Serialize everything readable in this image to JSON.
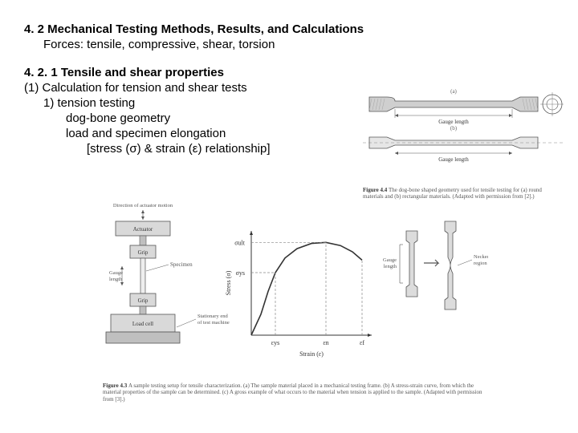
{
  "heading1": "4. 2  Mechanical Testing Methods, Results, and Calculations",
  "sub1": "Forces: tensile, compressive, shear, torsion",
  "heading2": "4. 2. 1  Tensile and shear properties",
  "l1": "(1) Calculation for tension and shear tests",
  "l2": "1) tension testing",
  "l3": "dog-bone geometry",
  "l4": "load and specimen elongation",
  "l5": "[stress (σ) & strain (ε) relationship]",
  "fig44": {
    "label": "Figure 4.4",
    "caption": "The dog-bone shaped geometry used for tensile testing for (a) round materials and (b) rectangular materials. (Adapted with permission from [2].)",
    "gauge_label": "Gauge length",
    "dims": {
      "bar_length": 210,
      "grip_w": 22,
      "grip_h": 18,
      "mid_h": 8,
      "rect_grip_w": 24,
      "rect_grip_h": 14,
      "rect_mid_h": 6,
      "circle_r": 12,
      "colors": {
        "stroke": "#555",
        "fill": "#cfcfcf",
        "light": "#e6e6e6"
      }
    }
  },
  "fig43": {
    "label": "Figure 4.3",
    "caption": "A sample testing setup for tensile characterization. (a) The sample material placed in a mechanical testing frame. (b) A stress-strain curve, from which the material properties of the sample can be determined. (c) A gross example of what occurs to the material when tension is applied to the sample. (Adapted with permission from [3].)",
    "machine": {
      "actuator": "Actuator",
      "grip": "Grip",
      "load_cell": "Load cell",
      "specimen": "Specimen",
      "gauge": "Gauge length",
      "motion": "Direction of actuator motion",
      "stationary": "Stationary end of test machine",
      "colors": {
        "stroke": "#555",
        "fill": "#d9d9d9",
        "dark": "#bfbfbf"
      }
    },
    "curve": {
      "xlabel": "Strain (ε)",
      "ylabel": "Stress (σ)",
      "sigma_ys": "σys",
      "sigma_ult": "σult",
      "eps_ys": "εys",
      "eps_n": "εn",
      "eps_f": "εf",
      "xlim": [
        0,
        100
      ],
      "ylim": [
        0,
        100
      ],
      "points": [
        [
          0,
          0
        ],
        [
          8,
          20
        ],
        [
          14,
          42
        ],
        [
          20,
          60
        ],
        [
          28,
          74
        ],
        [
          38,
          83
        ],
        [
          50,
          88
        ],
        [
          62,
          89
        ],
        [
          74,
          86
        ],
        [
          84,
          80
        ],
        [
          92,
          72
        ]
      ],
      "ys_x": 20,
      "ult_x": 62,
      "f_x": 92,
      "colors": {
        "axis": "#333",
        "curve": "#333",
        "dash": "#888",
        "bg": "#ffffff"
      },
      "line_width": 1.6
    },
    "necking": {
      "before": "Gauge length",
      "after": "Necked region",
      "colors": {
        "stroke": "#555",
        "fill": "#dcdcdc"
      }
    }
  }
}
